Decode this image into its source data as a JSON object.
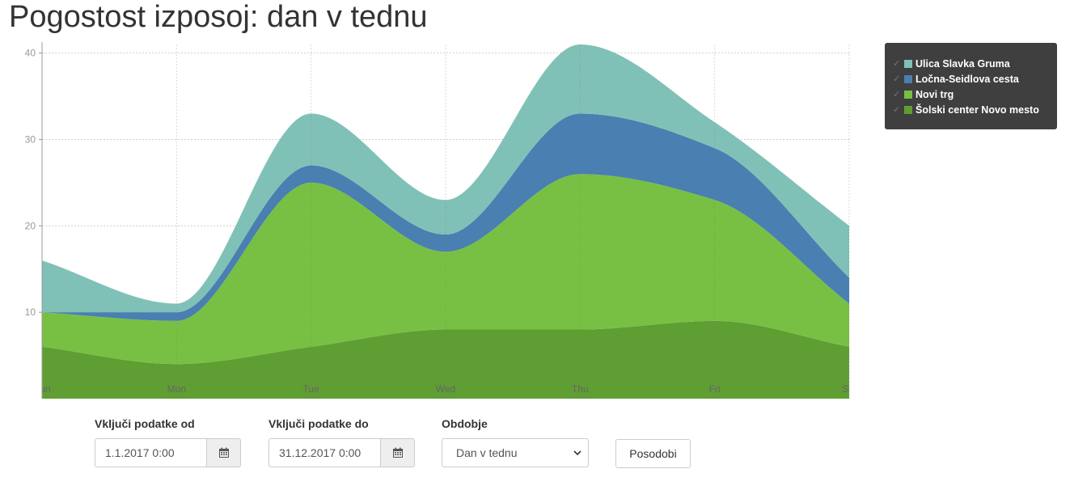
{
  "title": "Pogostost izposoj: dan v tednu",
  "chart_data": {
    "type": "area",
    "stacked": true,
    "x": [
      "Sun",
      "Mon",
      "Tue",
      "Wed",
      "Thu",
      "Fri",
      "Sat"
    ],
    "ylim": [
      0,
      41
    ],
    "yticks": [
      10,
      20,
      30,
      40
    ],
    "grid": true,
    "legend_position": "top-right",
    "series": [
      {
        "name": "Šolski center Novo mesto",
        "color": "#5f9e33",
        "values": [
          6,
          4,
          6,
          8,
          8,
          9,
          6
        ]
      },
      {
        "name": "Novi trg",
        "color": "#78c043",
        "values": [
          4,
          5,
          19,
          9,
          18,
          14,
          5
        ]
      },
      {
        "name": "Ločna-Seidlova cesta",
        "color": "#4a7fb2",
        "values": [
          0,
          1,
          2,
          2,
          7,
          6,
          3
        ]
      },
      {
        "name": "Ulica Slavka Gruma",
        "color": "#80c1b7",
        "values": [
          6,
          1,
          6,
          4,
          8,
          3,
          6
        ]
      }
    ],
    "legend_order": [
      "Ulica Slavka Gruma",
      "Ločna-Seidlova cesta",
      "Novi trg",
      "Šolski center Novo mesto"
    ]
  },
  "form": {
    "from_label": "Vključi podatke od",
    "from_value": "1.1.2017 0:00",
    "to_label": "Vključi podatke do",
    "to_value": "31.12.2017 0:00",
    "period_label": "Obdobje",
    "period_value": "Dan v tednu",
    "update_button": "Posodobi"
  },
  "icons": {
    "calendar": "calendar-icon",
    "dropdown": "chevron-down-icon",
    "legend_check": "check-icon"
  }
}
